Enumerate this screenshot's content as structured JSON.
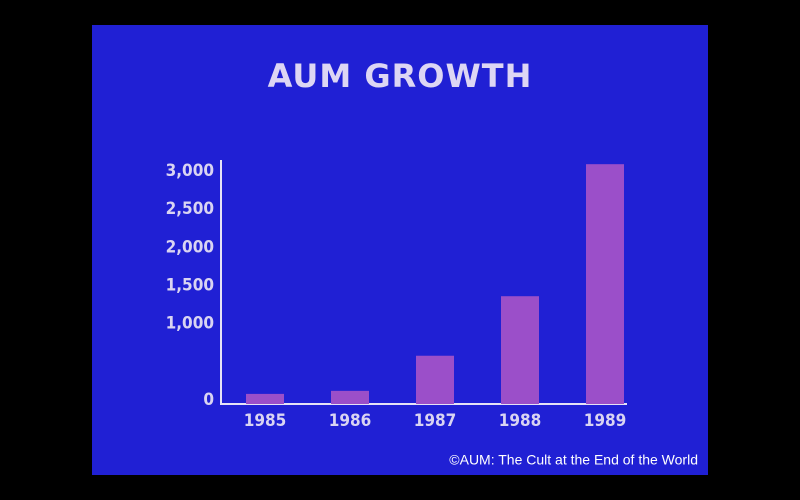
{
  "chart_data": {
    "type": "bar",
    "title": "AUM GROWTH",
    "caption": "©AUM: The Cult at the End of the World",
    "categories": [
      "1985",
      "1986",
      "1987",
      "1988",
      "1989"
    ],
    "values": [
      80,
      120,
      580,
      1360,
      3090
    ],
    "color": "#9b4fc9",
    "ylim": [
      0,
      3150
    ],
    "yticks": [
      0,
      {
        "value": 1000,
        "label": "1,000"
      },
      {
        "value": 1500,
        "label": "1,500"
      },
      {
        "value": 2000,
        "label": "2,000"
      },
      {
        "value": 2500,
        "label": "2,500"
      },
      {
        "value": 3000,
        "label": "3,000"
      }
    ],
    "grid": false
  }
}
